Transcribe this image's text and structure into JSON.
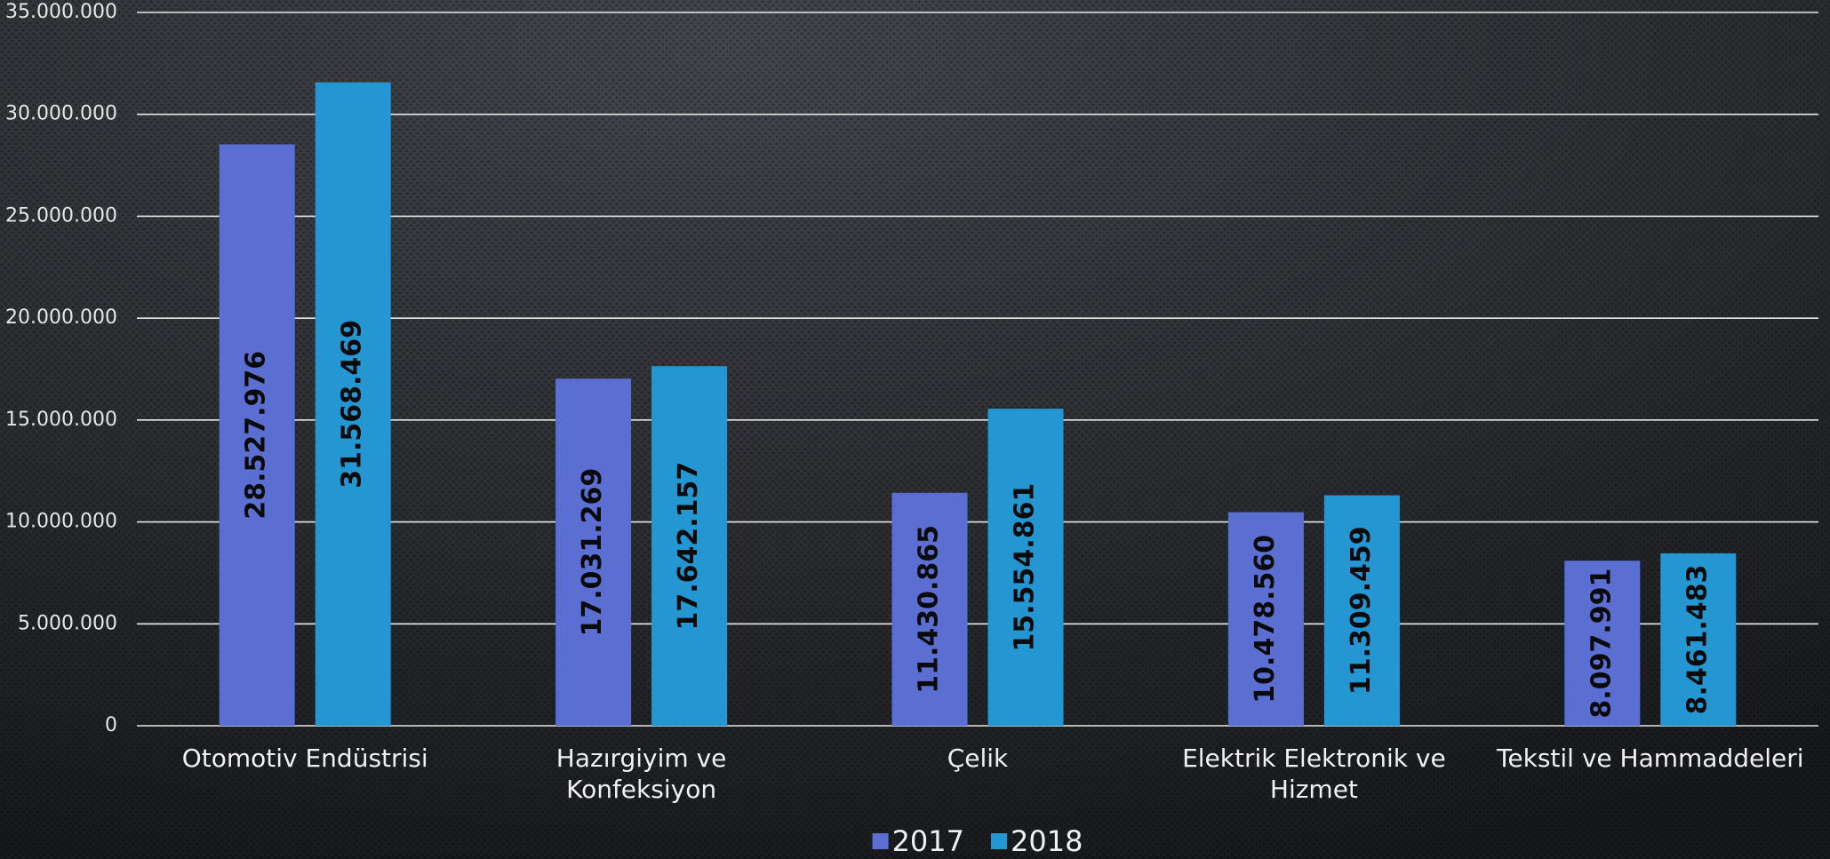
{
  "chart_data": {
    "type": "bar",
    "categories": [
      "Otomotiv Endüstrisi",
      "Hazırgiyim ve Konfeksiyon",
      "Çelik",
      "Elektrik Elektronik ve Hizmet",
      "Tekstil ve Hammaddeleri"
    ],
    "series": [
      {
        "name": "2017",
        "color": "#5b6fd3",
        "values": [
          28527976,
          17031269,
          11430865,
          10478560,
          8097991
        ],
        "value_labels": [
          "28.527.976",
          "17.031.269",
          "11.430.865",
          "10.478.560",
          "8.097.991"
        ]
      },
      {
        "name": "2018",
        "color": "#2497d2",
        "values": [
          31568469,
          17642157,
          15554861,
          11309459,
          8461483
        ],
        "value_labels": [
          "31.568.469",
          "17.642.157",
          "15.554.861",
          "11.309.459",
          "8.461.483"
        ]
      }
    ],
    "ylim": [
      0,
      35000000
    ],
    "yticks": [
      0,
      {
        "value": 5000000,
        "label": "5.000.000"
      },
      {
        "value": 10000000,
        "label": "10.000.000"
      },
      {
        "value": 15000000,
        "label": "15.000.000"
      },
      {
        "value": 20000000,
        "label": "20.000.000"
      },
      {
        "value": 25000000,
        "label": "25.000.000"
      },
      {
        "value": 30000000,
        "label": "30.000.000"
      },
      {
        "value": 35000000,
        "label": "35.000.000"
      }
    ],
    "grid": true,
    "legend": "bottom"
  }
}
